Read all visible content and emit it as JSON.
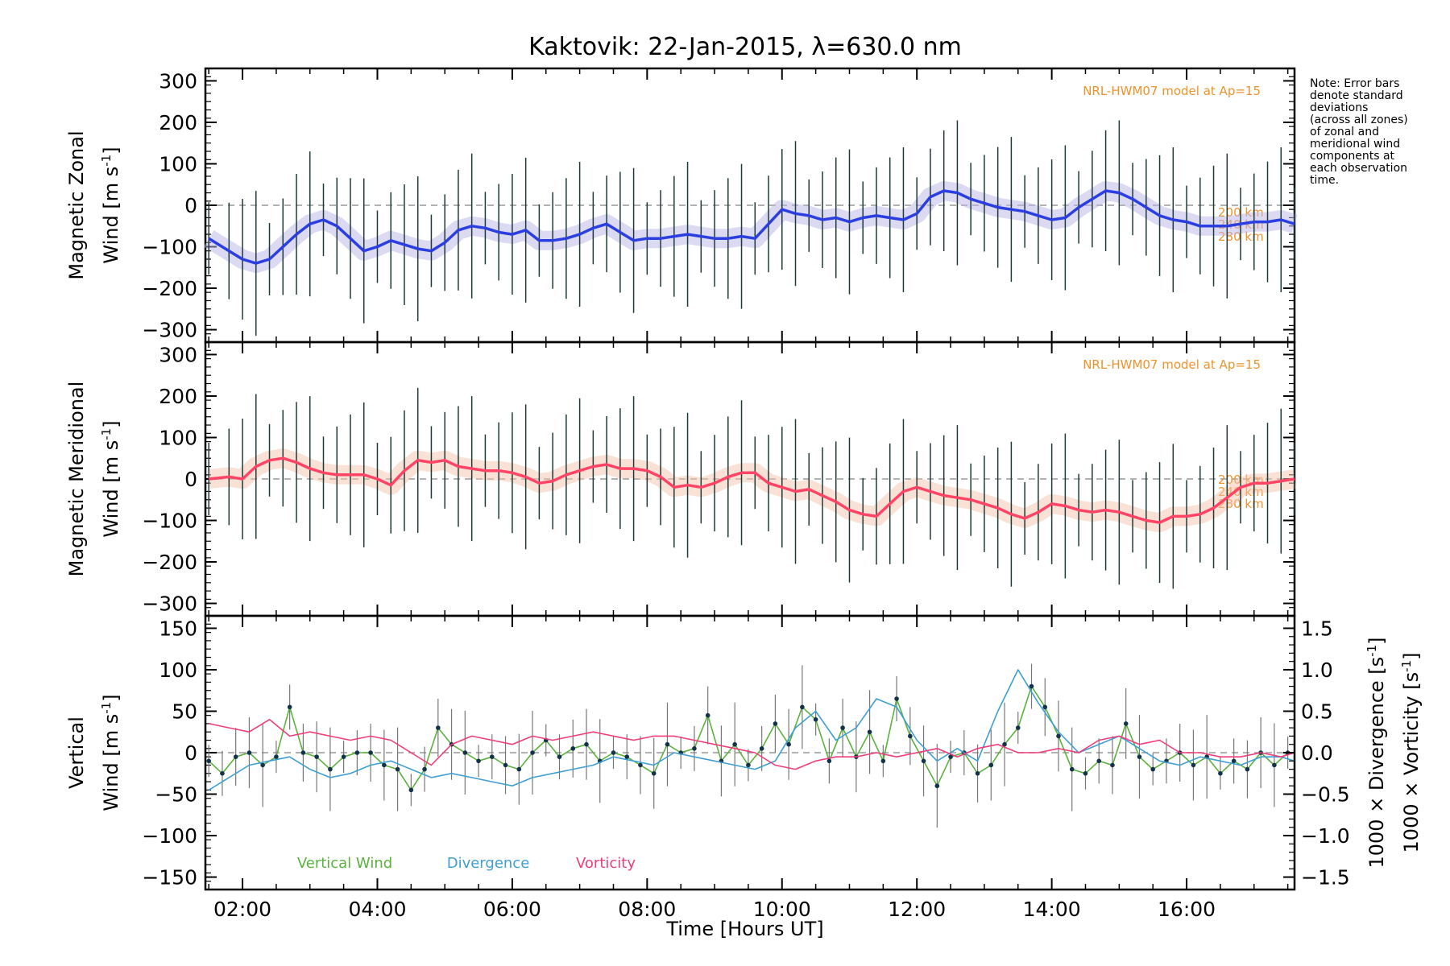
{
  "chart_data": {
    "title": "Kaktovik: 22-Jan-2015, λ=630.0 nm",
    "note": [
      "Note: Error bars",
      "denote standard",
      "deviations",
      "(across all zones)",
      "of zonal and",
      "meridional wind",
      "components at",
      "each observation",
      "time."
    ],
    "xlabel": "Time [Hours UT]",
    "x_ticks": [
      "02:00",
      "04:00",
      "06:00",
      "08:00",
      "10:00",
      "12:00",
      "14:00",
      "16:00"
    ],
    "x_tick_hours": [
      2,
      4,
      6,
      8,
      10,
      12,
      14,
      16
    ],
    "xlim": [
      1.45,
      17.6
    ],
    "panels": [
      {
        "id": "zonal",
        "type": "line",
        "ylabel_line1": "Magnetic Zonal",
        "ylabel_line2": "Wind [m s",
        "ylabel_sup": "-1",
        "ylabel_close": "]",
        "ylim": [
          -330,
          330
        ],
        "y_ticks": [
          "300",
          "200",
          "100",
          "0",
          "−100",
          "−200",
          "−300"
        ],
        "y_tick_values": [
          300,
          200,
          100,
          0,
          -100,
          -200,
          -300
        ],
        "model_note": "NRL-HWM07 model at Ap=15",
        "alt_labels": [
          "200 km",
          "240 km",
          "280 km"
        ],
        "series": [
          {
            "color": "#2b3fe0",
            "x": [
              1.5,
              1.8,
              2.0,
              2.2,
              2.4,
              2.6,
              2.8,
              3.0,
              3.2,
              3.4,
              3.6,
              3.8,
              4.0,
              4.2,
              4.4,
              4.6,
              4.8,
              5.0,
              5.2,
              5.4,
              5.6,
              5.8,
              6.0,
              6.2,
              6.4,
              6.6,
              6.8,
              7.0,
              7.2,
              7.4,
              7.6,
              7.8,
              8.0,
              8.2,
              8.4,
              8.6,
              8.8,
              9.0,
              9.2,
              9.4,
              9.6,
              9.8,
              10.0,
              10.2,
              10.4,
              10.6,
              10.8,
              11.0,
              11.2,
              11.4,
              11.6,
              11.8,
              12.0,
              12.2,
              12.4,
              12.6,
              12.8,
              13.0,
              13.2,
              13.4,
              13.6,
              13.8,
              14.0,
              14.2,
              14.4,
              14.6,
              14.8,
              15.0,
              15.2,
              15.4,
              15.6,
              15.8,
              16.0,
              16.2,
              16.4,
              16.6,
              16.8,
              17.0,
              17.2,
              17.4,
              17.6
            ],
            "y": [
              -80,
              -110,
              -130,
              -140,
              -130,
              -100,
              -70,
              -45,
              -35,
              -50,
              -80,
              -110,
              -100,
              -85,
              -95,
              -105,
              -110,
              -90,
              -60,
              -50,
              -55,
              -65,
              -70,
              -60,
              -85,
              -85,
              -80,
              -70,
              -55,
              -45,
              -65,
              -85,
              -80,
              -80,
              -75,
              -70,
              -75,
              -80,
              -80,
              -75,
              -80,
              -45,
              -10,
              -20,
              -25,
              -35,
              -30,
              -40,
              -30,
              -25,
              -30,
              -35,
              -20,
              20,
              35,
              30,
              15,
              5,
              -5,
              -10,
              -15,
              -25,
              -35,
              -30,
              -5,
              15,
              35,
              30,
              15,
              -5,
              -25,
              -35,
              -40,
              -50,
              -50,
              -50,
              -45,
              -40,
              -40,
              -35,
              -45
            ]
          }
        ]
      },
      {
        "id": "meridional",
        "type": "line",
        "ylabel_line1": "Magnetic Meridional",
        "ylabel_line2": "Wind [m s",
        "ylabel_sup": "-1",
        "ylabel_close": "]",
        "ylim": [
          -330,
          330
        ],
        "y_ticks": [
          "300",
          "200",
          "100",
          "0",
          "−100",
          "−200",
          "−300"
        ],
        "y_tick_values": [
          300,
          200,
          100,
          0,
          -100,
          -200,
          -300
        ],
        "model_note": "NRL-HWM07 model at Ap=15",
        "alt_labels": [
          "200 km",
          "240 km",
          "280 km"
        ],
        "series": [
          {
            "color": "#ff4466",
            "x": [
              1.5,
              1.8,
              2.0,
              2.2,
              2.4,
              2.6,
              2.8,
              3.0,
              3.2,
              3.4,
              3.6,
              3.8,
              4.0,
              4.2,
              4.4,
              4.6,
              4.8,
              5.0,
              5.2,
              5.4,
              5.6,
              5.8,
              6.0,
              6.2,
              6.4,
              6.6,
              6.8,
              7.0,
              7.2,
              7.4,
              7.6,
              7.8,
              8.0,
              8.2,
              8.4,
              8.6,
              8.8,
              9.0,
              9.2,
              9.4,
              9.6,
              9.8,
              10.0,
              10.2,
              10.4,
              10.6,
              10.8,
              11.0,
              11.2,
              11.4,
              11.6,
              11.8,
              12.0,
              12.2,
              12.4,
              12.6,
              12.8,
              13.0,
              13.2,
              13.4,
              13.6,
              13.8,
              14.0,
              14.2,
              14.4,
              14.6,
              14.8,
              15.0,
              15.2,
              15.4,
              15.6,
              15.8,
              16.0,
              16.2,
              16.4,
              16.6,
              16.8,
              17.0,
              17.2,
              17.4,
              17.6
            ],
            "y": [
              0,
              5,
              0,
              30,
              45,
              50,
              40,
              25,
              15,
              10,
              10,
              10,
              0,
              -15,
              20,
              45,
              40,
              45,
              30,
              25,
              20,
              20,
              15,
              5,
              -10,
              -5,
              10,
              20,
              30,
              35,
              25,
              25,
              20,
              5,
              -20,
              -15,
              -20,
              -10,
              5,
              15,
              15,
              -10,
              -20,
              -30,
              -25,
              -40,
              -55,
              -75,
              -85,
              -90,
              -60,
              -30,
              -20,
              -30,
              -40,
              -45,
              -50,
              -60,
              -70,
              -85,
              -95,
              -80,
              -60,
              -65,
              -75,
              -80,
              -75,
              -80,
              -90,
              -100,
              -105,
              -90,
              -90,
              -85,
              -70,
              -45,
              -20,
              -10,
              -10,
              -5,
              0
            ]
          }
        ]
      },
      {
        "id": "vertical",
        "type": "line",
        "ylabel_line1": "Vertical",
        "ylabel_line2": "Wind [m s",
        "ylabel_sup": "-1",
        "ylabel_close": "]",
        "ylim": [
          -165,
          165
        ],
        "y_ticks": [
          "150",
          "100",
          "50",
          "0",
          "−50",
          "−100",
          "−150"
        ],
        "y_tick_values": [
          150,
          100,
          50,
          0,
          -50,
          -100,
          -150
        ],
        "y2lim": [
          -1.65,
          1.65
        ],
        "y2_ticks": [
          "1.5",
          "1.0",
          "0.5",
          "0.0",
          "−0.5",
          "−1.0",
          "−1.5"
        ],
        "y2_tick_values": [
          1.5,
          1.0,
          0.5,
          0.0,
          -0.5,
          -1.0,
          -1.5
        ],
        "y2_label_div": "1000 × Divergence [s",
        "y2_label_vort": "1000 × Vorticity [s",
        "y2_label_sup": "-1",
        "y2_label_close": "]",
        "legend": [
          "Vertical Wind",
          "Divergence",
          "Vorticity"
        ],
        "series": [
          {
            "name": "Vertical Wind",
            "color": "#5ab23c",
            "axis": "left",
            "x": [
              1.5,
              1.7,
              1.9,
              2.1,
              2.3,
              2.5,
              2.7,
              2.9,
              3.1,
              3.3,
              3.5,
              3.7,
              3.9,
              4.1,
              4.3,
              4.5,
              4.7,
              4.9,
              5.1,
              5.3,
              5.5,
              5.7,
              5.9,
              6.1,
              6.3,
              6.5,
              6.7,
              6.9,
              7.1,
              7.3,
              7.5,
              7.7,
              7.9,
              8.1,
              8.3,
              8.5,
              8.7,
              8.9,
              9.1,
              9.3,
              9.5,
              9.7,
              9.9,
              10.1,
              10.3,
              10.5,
              10.7,
              10.9,
              11.1,
              11.3,
              11.5,
              11.7,
              11.9,
              12.1,
              12.3,
              12.5,
              12.7,
              12.9,
              13.1,
              13.3,
              13.5,
              13.7,
              13.9,
              14.1,
              14.3,
              14.5,
              14.7,
              14.9,
              15.1,
              15.3,
              15.5,
              15.7,
              15.9,
              16.1,
              16.3,
              16.5,
              16.7,
              16.9,
              17.1,
              17.3,
              17.5
            ],
            "y": [
              -10,
              -25,
              -5,
              0,
              -15,
              -5,
              55,
              0,
              -5,
              -20,
              -5,
              0,
              0,
              -15,
              -20,
              -45,
              -20,
              30,
              10,
              0,
              -10,
              -5,
              -15,
              -20,
              0,
              15,
              -5,
              5,
              10,
              -10,
              0,
              -5,
              -15,
              -25,
              10,
              0,
              5,
              45,
              -10,
              10,
              -15,
              5,
              35,
              10,
              55,
              40,
              -10,
              30,
              -5,
              25,
              -10,
              65,
              20,
              -10,
              -40,
              -5,
              0,
              -25,
              -15,
              10,
              30,
              80,
              55,
              20,
              -20,
              -25,
              -10,
              -15,
              35,
              -5,
              -20,
              -10,
              0,
              -15,
              -5,
              -25,
              -10,
              -20,
              0,
              -15,
              0
            ]
          },
          {
            "name": "Divergence",
            "color": "#3f9fd0",
            "axis": "right",
            "x": [
              1.5,
              1.8,
              2.1,
              2.4,
              2.7,
              3.0,
              3.3,
              3.6,
              3.9,
              4.2,
              4.5,
              4.8,
              5.1,
              5.4,
              5.7,
              6.0,
              6.3,
              6.6,
              6.9,
              7.2,
              7.5,
              7.8,
              8.1,
              8.4,
              8.7,
              9.0,
              9.3,
              9.6,
              9.9,
              10.2,
              10.5,
              10.8,
              11.1,
              11.4,
              11.7,
              12.0,
              12.3,
              12.6,
              12.9,
              13.2,
              13.5,
              13.8,
              14.1,
              14.4,
              14.7,
              15.0,
              15.3,
              15.6,
              15.9,
              16.2,
              16.5,
              16.8,
              17.1,
              17.4,
              17.6
            ],
            "y": [
              -0.45,
              -0.3,
              -0.15,
              -0.1,
              -0.05,
              -0.2,
              -0.3,
              -0.25,
              -0.15,
              -0.1,
              -0.2,
              -0.3,
              -0.25,
              -0.3,
              -0.35,
              -0.4,
              -0.3,
              -0.25,
              -0.2,
              -0.15,
              -0.05,
              -0.1,
              -0.15,
              0.0,
              -0.05,
              -0.1,
              -0.15,
              -0.2,
              -0.1,
              0.3,
              0.5,
              0.15,
              0.3,
              0.65,
              0.55,
              0.15,
              -0.1,
              0.05,
              -0.1,
              0.5,
              1.0,
              0.6,
              0.25,
              0.0,
              0.1,
              0.2,
              0.05,
              -0.1,
              -0.15,
              -0.05,
              -0.1,
              -0.15,
              -0.05,
              -0.05,
              -0.1
            ]
          },
          {
            "name": "Vorticity",
            "color": "#ee3d7a",
            "axis": "right",
            "x": [
              1.5,
              1.8,
              2.1,
              2.4,
              2.7,
              3.0,
              3.3,
              3.6,
              3.9,
              4.2,
              4.5,
              4.8,
              5.1,
              5.4,
              5.7,
              6.0,
              6.3,
              6.6,
              6.9,
              7.2,
              7.5,
              7.8,
              8.1,
              8.4,
              8.7,
              9.0,
              9.3,
              9.6,
              9.9,
              10.2,
              10.5,
              10.8,
              11.1,
              11.4,
              11.7,
              12.0,
              12.3,
              12.6,
              12.9,
              13.2,
              13.5,
              13.8,
              14.1,
              14.4,
              14.7,
              15.0,
              15.3,
              15.6,
              15.9,
              16.2,
              16.5,
              16.8,
              17.1,
              17.4,
              17.6
            ],
            "y": [
              0.35,
              0.3,
              0.25,
              0.4,
              0.2,
              0.25,
              0.2,
              0.15,
              0.2,
              0.15,
              0.0,
              -0.15,
              0.1,
              0.2,
              0.15,
              0.1,
              0.2,
              0.15,
              0.2,
              0.25,
              0.2,
              0.15,
              0.2,
              0.2,
              0.15,
              0.1,
              0.05,
              0.0,
              -0.15,
              -0.2,
              -0.1,
              -0.05,
              -0.05,
              0.0,
              -0.05,
              0.0,
              0.05,
              -0.05,
              0.05,
              0.1,
              0.0,
              0.0,
              0.05,
              0.0,
              0.15,
              0.2,
              0.1,
              0.15,
              0.0,
              0.0,
              -0.05,
              -0.05,
              0.0,
              -0.05,
              0.0
            ]
          }
        ]
      }
    ]
  }
}
